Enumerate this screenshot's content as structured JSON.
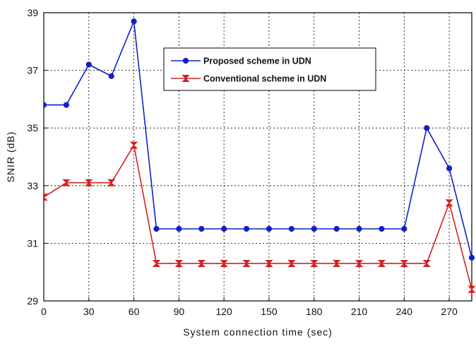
{
  "chart_data": {
    "type": "line",
    "xlabel": "System connection time (sec)",
    "ylabel": "SNIR (dB)",
    "xlim": [
      0,
      285
    ],
    "ylim": [
      29,
      39
    ],
    "xticks": [
      0,
      30,
      60,
      90,
      120,
      150,
      180,
      210,
      240,
      270
    ],
    "yticks": [
      29,
      31,
      33,
      35,
      37,
      39
    ],
    "grid": true,
    "legend_position": "top-center",
    "x": [
      0,
      15,
      30,
      45,
      60,
      75,
      90,
      105,
      120,
      135,
      150,
      165,
      180,
      195,
      210,
      225,
      240,
      255,
      270,
      285
    ],
    "series": [
      {
        "name": "Proposed scheme in UDN",
        "color": "#1020c8",
        "marker": "circle",
        "values": [
          35.8,
          35.8,
          37.2,
          36.8,
          38.7,
          31.5,
          31.5,
          31.5,
          31.5,
          31.5,
          31.5,
          31.5,
          31.5,
          31.5,
          31.5,
          31.5,
          31.5,
          35.0,
          33.6,
          30.5
        ]
      },
      {
        "name": "Conventional scheme in UDN",
        "color": "#d42020",
        "marker": "bowtie",
        "values": [
          32.6,
          33.1,
          33.1,
          33.1,
          34.4,
          30.3,
          30.3,
          30.3,
          30.3,
          30.3,
          30.3,
          30.3,
          30.3,
          30.3,
          30.3,
          30.3,
          30.3,
          30.3,
          32.4,
          29.4
        ]
      }
    ]
  }
}
